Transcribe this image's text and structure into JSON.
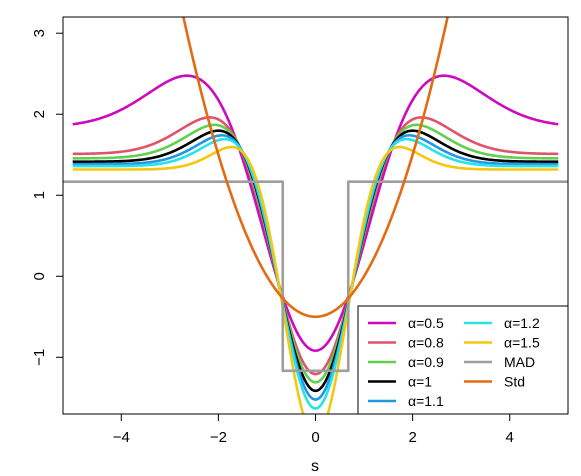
{
  "chart_data": {
    "type": "line",
    "xlabel": "s",
    "ylabel": "",
    "xlim": [
      -5.2,
      5.2
    ],
    "ylim": [
      -1.7,
      3.2
    ],
    "x_ticks": [
      -4,
      -2,
      0,
      2,
      4
    ],
    "x_tick_labels": [
      "−4",
      "−2",
      "0",
      "2",
      "4"
    ],
    "y_ticks": [
      -1,
      0,
      1,
      2,
      3
    ],
    "y_tick_labels": [
      "−1",
      "0",
      "1",
      "2",
      "3"
    ],
    "legend_position": "bottom-right",
    "series": [
      {
        "name": "α=0.5",
        "color": "#cd0bbc",
        "alpha": 0.5
      },
      {
        "name": "α=0.8",
        "color": "#df536b",
        "alpha": 0.8
      },
      {
        "name": "α=0.9",
        "color": "#61d04f",
        "alpha": 0.9
      },
      {
        "name": "α=1",
        "color": "#000000",
        "alpha": 1.0
      },
      {
        "name": "α=1.1",
        "color": "#2297e6",
        "alpha": 1.1
      },
      {
        "name": "α=1.2",
        "color": "#28e2e5",
        "alpha": 1.2
      },
      {
        "name": "α=1.5",
        "color": "#f5c710",
        "alpha": 1.5
      },
      {
        "name": "MAD",
        "color": "#9e9e9e",
        "type": "mad",
        "low": -1.167,
        "high": 1.167,
        "cut": 0.6745
      },
      {
        "name": "Std",
        "color": "#e36b12",
        "type": "std"
      }
    ]
  }
}
